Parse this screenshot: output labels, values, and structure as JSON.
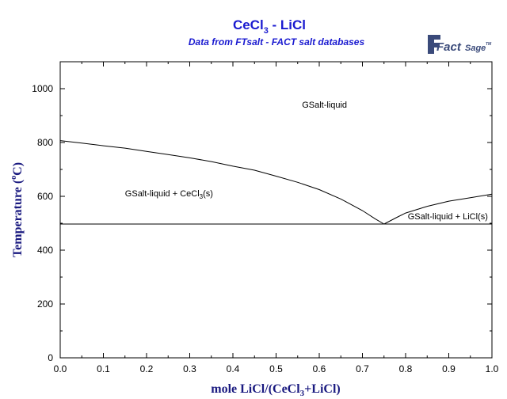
{
  "title": {
    "main": "CeCl",
    "sub": "3",
    "rest": " - LiCl"
  },
  "subtitle": "Data from FTsalt - FACT salt databases",
  "logo": {
    "word1": "Fact",
    "word2": "Sage",
    "tm": "TM"
  },
  "chart_data": {
    "type": "line",
    "xlabel": {
      "pre": "mole LiCl/(CeCl",
      "sub": "3",
      "post": "+LiCl)"
    },
    "ylabel": {
      "pre": "Temperature (",
      "deg": "o",
      "post": "C)"
    },
    "xlim": [
      0,
      1
    ],
    "ylim": [
      0,
      1100
    ],
    "xticks": [
      "0.0",
      "0.1",
      "0.2",
      "0.3",
      "0.4",
      "0.5",
      "0.6",
      "0.7",
      "0.8",
      "0.9",
      "1.0"
    ],
    "yticks": [
      "0",
      "200",
      "400",
      "600",
      "800",
      "1000"
    ],
    "grid": false,
    "series": [
      {
        "x": [
          0.0,
          0.05,
          0.1,
          0.15,
          0.2,
          0.25,
          0.3,
          0.35,
          0.4,
          0.45,
          0.5,
          0.55,
          0.6,
          0.65,
          0.7,
          0.73,
          0.75
        ],
        "y": [
          807,
          798,
          788,
          779,
          767,
          755,
          743,
          729,
          712,
          697,
          675,
          652,
          625,
          590,
          547,
          516,
          497
        ]
      },
      {
        "x": [
          0.75,
          0.78,
          0.8,
          0.85,
          0.9,
          0.95,
          1.0
        ],
        "y": [
          497,
          522,
          538,
          563,
          582,
          595,
          608
        ]
      },
      {
        "x": [
          0.0,
          1.0
        ],
        "y": [
          497,
          497
        ]
      }
    ],
    "annotations": [
      {
        "text": "GSalt-liquid",
        "x": 0.56,
        "y": 930
      },
      {
        "pre": "GSalt-liquid + CeCl",
        "sub": "3",
        "post": "(s)",
        "x": 0.15,
        "y": 600
      },
      {
        "text": "GSalt-liquid + LiCl(s)",
        "x": 0.805,
        "y": 515
      }
    ]
  }
}
